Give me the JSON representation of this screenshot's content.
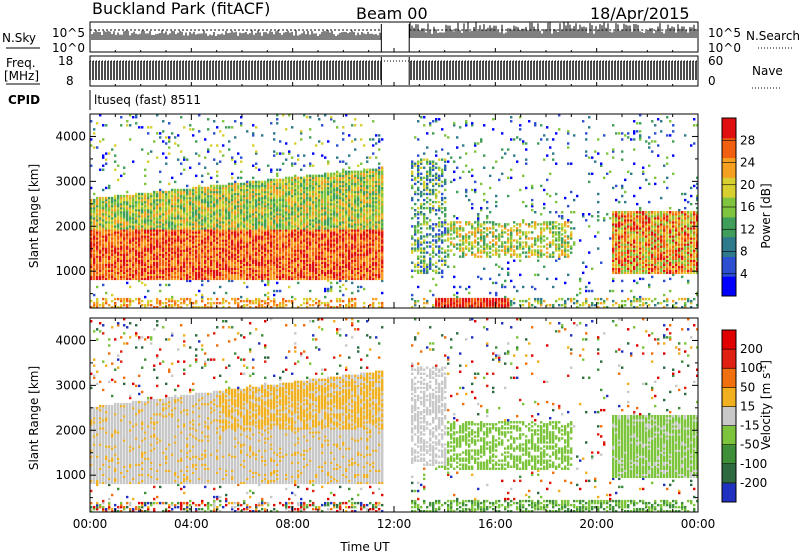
{
  "header": {
    "site": "Buckland Park (fitACF)",
    "beam": "Beam 00",
    "date": "18/Apr/2015"
  },
  "summary_panels": {
    "nsky_label": "N.Sky",
    "nsearch_label": "N.Search",
    "noise_ticks": [
      "10^5",
      "10^0"
    ],
    "noise_ticks_right": [
      "10^5",
      "10^0"
    ],
    "freq_label_line1": "Freq.",
    "freq_label_line2": "[MHz]",
    "freq_ticks": [
      "18",
      "8"
    ],
    "nave_label": "Nave",
    "nave_ticks": [
      "60",
      "0"
    ],
    "cpid_label": "CPID",
    "cpid_value": "ltuseq (fast) 8511",
    "data_gap_hours": [
      11.5,
      12.6
    ]
  },
  "chart_data": [
    {
      "type": "heatmap",
      "name": "power",
      "ylabel": "Slant Range [km]",
      "xlabel": "",
      "ylim": [
        180,
        4500
      ],
      "xlim": [
        0,
        24
      ],
      "yticks": [
        "1000",
        "2000",
        "3000",
        "4000"
      ],
      "colorbar": {
        "label": "Power [dB]",
        "ticks": [
          "28",
          "24",
          "20",
          "16",
          "12",
          "8",
          "4"
        ],
        "range": [
          0,
          32
        ],
        "colors": [
          "#0000ff",
          "#2b4fd0",
          "#2e7a8c",
          "#3f9f5a",
          "#7fc43f",
          "#d8d030",
          "#f5a020",
          "#f06010",
          "#e01010"
        ]
      }
    },
    {
      "type": "heatmap",
      "name": "velocity",
      "ylabel": "Slant Range [km]",
      "xlabel": "Time UT",
      "ylim": [
        180,
        4500
      ],
      "xlim": [
        0,
        24
      ],
      "yticks": [
        "1000",
        "2000",
        "3000",
        "4000"
      ],
      "xticks": [
        "00:00",
        "04:00",
        "08:00",
        "12:00",
        "16:00",
        "20:00",
        "00:00"
      ],
      "colorbar": {
        "label": "Velocity [m s",
        "label_sup": "-1",
        "label_end": "]",
        "ticks": [
          "200",
          "100",
          "50",
          "15",
          "-15",
          "-50",
          "-100",
          "-200"
        ],
        "colors": [
          "#2030c0",
          "#2e6a40",
          "#3e8e3a",
          "#7cc43c",
          "#c8c8c8",
          "#f0b020",
          "#f07010",
          "#e02010",
          "#e00000"
        ]
      }
    }
  ]
}
